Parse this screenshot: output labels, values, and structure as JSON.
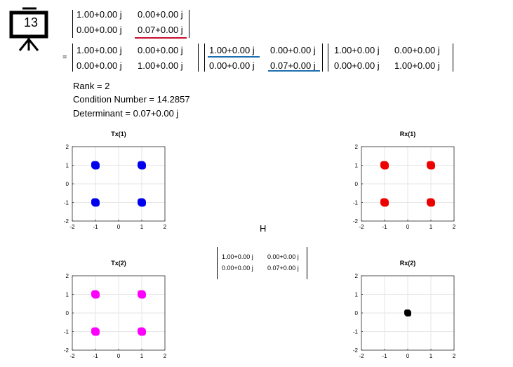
{
  "slide_number": "13",
  "top_matrix": {
    "rows": [
      [
        "1.00+0.00 j",
        "0.00+0.00 j"
      ],
      [
        "0.00+0.00 j",
        "0.07+0.00 j"
      ]
    ]
  },
  "equals": "=",
  "svd": {
    "U": {
      "rows": [
        [
          "1.00+0.00 j",
          "0.00+0.00 j"
        ],
        [
          "0.00+0.00 j",
          "1.00+0.00 j"
        ]
      ]
    },
    "S": {
      "rows": [
        [
          "1.00+0.00 j",
          "0.00+0.00 j"
        ],
        [
          "0.00+0.00 j",
          "0.07+0.00 j"
        ]
      ]
    },
    "V": {
      "rows": [
        [
          "1.00+0.00 j",
          "0.00+0.00 j"
        ],
        [
          "0.00+0.00 j",
          "1.00+0.00 j"
        ]
      ]
    }
  },
  "stats": {
    "rank": "Rank = 2",
    "condition": "Condition Number = 14.2857",
    "determinant": "Determinant = 0.07+0.00 j"
  },
  "channel": {
    "label": "H",
    "rows": [
      [
        "1.00+0.00 j",
        "0.00+0.00 j"
      ],
      [
        "0.00+0.00 j",
        "0.07+0.00 j"
      ]
    ]
  },
  "colors": {
    "tx1": "#0000ee",
    "rx1": "#ee0000",
    "tx2": "#ff00ff",
    "rx2": "#000000",
    "underline_red": "#c8102e",
    "underline_blue": "#1f6fb2"
  },
  "chart_data": [
    {
      "type": "scatter",
      "title": "Tx(1)",
      "xlim": [
        -2,
        2
      ],
      "ylim": [
        -2,
        2
      ],
      "xticks": [
        "-2",
        "-1",
        "0",
        "1",
        "2"
      ],
      "yticks": [
        "2",
        "1",
        "0",
        "-1",
        "-2"
      ],
      "grid": true,
      "series": [
        {
          "points": [
            [
              -1,
              1
            ],
            [
              1,
              1
            ],
            [
              -1,
              -1
            ],
            [
              1,
              -1
            ]
          ]
        }
      ]
    },
    {
      "type": "scatter",
      "title": "Rx(1)",
      "xlim": [
        -2,
        2
      ],
      "ylim": [
        -2,
        2
      ],
      "xticks": [
        "-2",
        "-1",
        "0",
        "1",
        "2"
      ],
      "yticks": [
        "2",
        "1",
        "0",
        "-1",
        "-2"
      ],
      "grid": true,
      "series": [
        {
          "points": [
            [
              -1,
              1
            ],
            [
              1,
              1
            ],
            [
              -1,
              -1
            ],
            [
              1,
              -1
            ]
          ]
        }
      ]
    },
    {
      "type": "scatter",
      "title": "Tx(2)",
      "xlim": [
        -2,
        2
      ],
      "ylim": [
        -2,
        2
      ],
      "xticks": [
        "-2",
        "-1",
        "0",
        "1",
        "2"
      ],
      "yticks": [
        "2",
        "1",
        "0",
        "-1",
        "-2"
      ],
      "grid": true,
      "series": [
        {
          "points": [
            [
              -1,
              1
            ],
            [
              1,
              1
            ],
            [
              -1,
              -1
            ],
            [
              1,
              -1
            ]
          ]
        }
      ]
    },
    {
      "type": "scatter",
      "title": "Rx(2)",
      "xlim": [
        -2,
        2
      ],
      "ylim": [
        -2,
        2
      ],
      "xticks": [
        "-2",
        "-1",
        "0",
        "1",
        "2"
      ],
      "yticks": [
        "2",
        "1",
        "0",
        "-1",
        "-2"
      ],
      "grid": true,
      "series": [
        {
          "points": [
            [
              0,
              0
            ]
          ]
        }
      ]
    }
  ]
}
